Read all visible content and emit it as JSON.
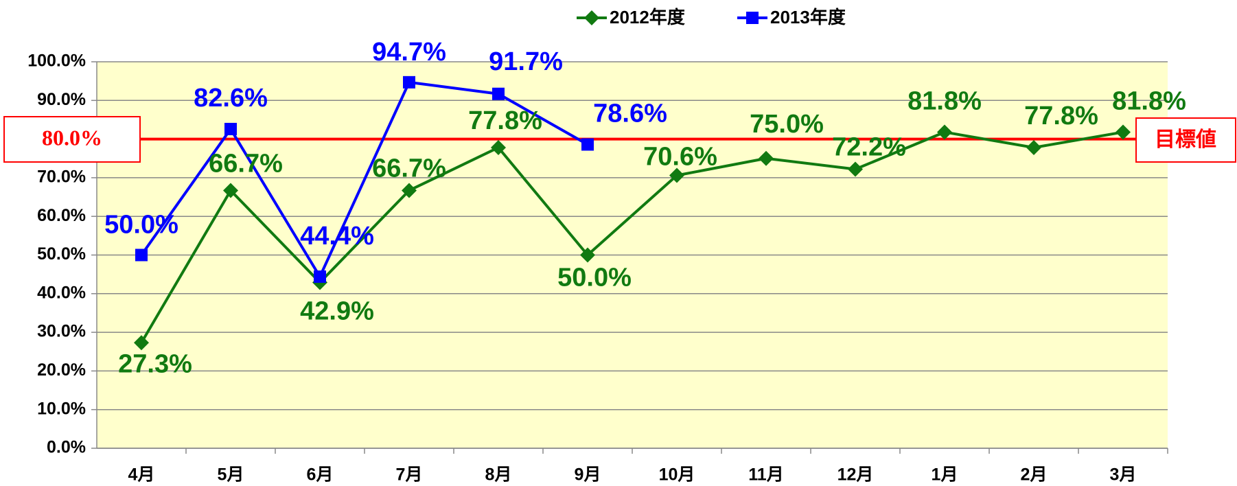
{
  "chart_data": {
    "type": "line",
    "categories": [
      "4月",
      "5月",
      "6月",
      "7月",
      "8月",
      "9月",
      "10月",
      "11月",
      "12月",
      "1月",
      "2月",
      "3月"
    ],
    "series": [
      {
        "name": "2012年度",
        "color": "#117a11",
        "marker": "diamond",
        "values": [
          27.3,
          66.7,
          42.9,
          66.7,
          77.8,
          50.0,
          70.6,
          75.0,
          72.2,
          81.8,
          77.8,
          81.8
        ],
        "value_labels": [
          "27.3%",
          "66.7%",
          "42.9%",
          "66.7%",
          "77.8%",
          "50.0%",
          "70.6%",
          "75.0%",
          "72.2%",
          "81.8%",
          "77.8%",
          "81.8%"
        ]
      },
      {
        "name": "2013年度",
        "color": "#0000ff",
        "marker": "square",
        "values": [
          50.0,
          82.6,
          44.4,
          94.7,
          91.7,
          78.6,
          null,
          null,
          null,
          null,
          null,
          null
        ],
        "value_labels": [
          "50.0%",
          "82.6%",
          "44.4%",
          "94.7%",
          "91.7%",
          "78.6%",
          null,
          null,
          null,
          null,
          null,
          null
        ]
      }
    ],
    "target": {
      "value": 80,
      "label": "80.0%",
      "name": "目標値",
      "color": "#ff0000"
    },
    "ylim": [
      0,
      100
    ],
    "yticks": [
      {
        "value": 0,
        "label": "0.0%"
      },
      {
        "value": 10,
        "label": "10.0%"
      },
      {
        "value": 20,
        "label": "20.0%"
      },
      {
        "value": 30,
        "label": "30.0%"
      },
      {
        "value": 40,
        "label": "40.0%"
      },
      {
        "value": 50,
        "label": "50.0%"
      },
      {
        "value": 60,
        "label": "60.0%"
      },
      {
        "value": 70,
        "label": "70.0%"
      },
      {
        "value": 80,
        "label": "80.0%"
      },
      {
        "value": 90,
        "label": "90.0%"
      },
      {
        "value": 100,
        "label": "100.0%"
      }
    ],
    "grid": true,
    "legend": "top"
  }
}
